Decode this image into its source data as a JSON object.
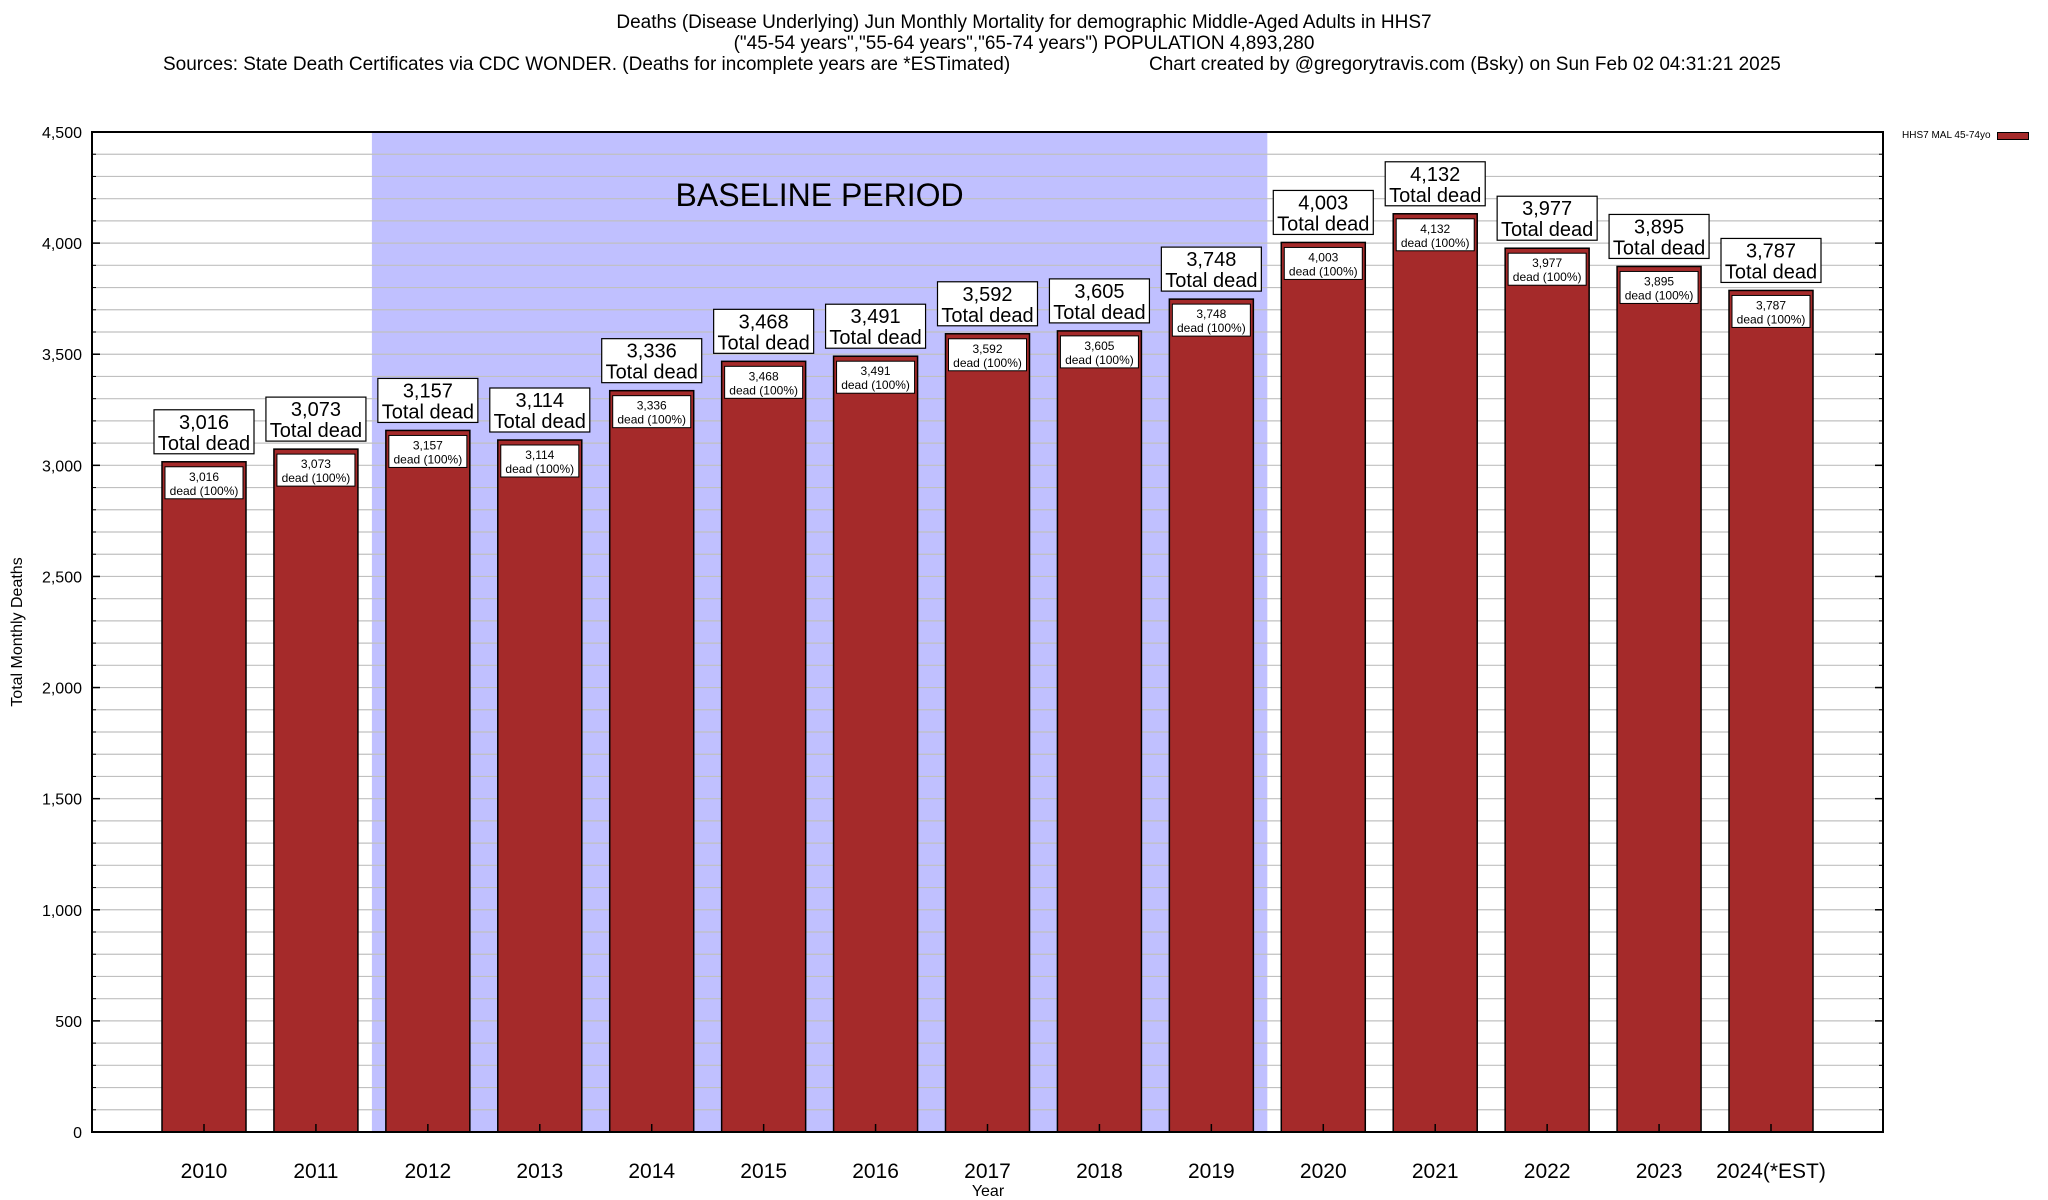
{
  "header": {
    "title_line1": "Deaths (Disease Underlying) Jun Monthly Mortality for demographic Middle-Aged Adults in HHS7",
    "title_line2": "(\"45-54 years\",\"55-64 years\",\"65-74 years\") POPULATION 4,893,280",
    "sources": "Sources: State Death Certificates via CDC WONDER. (Deaths for incomplete years are *ESTimated)",
    "credit": "Chart created by @gregorytravis.com (Bsky) on Sun Feb 02 04:31:21 2025"
  },
  "legend": {
    "label": "HHS7 MAL 45-74yo",
    "color": "#a52a2a"
  },
  "colors": {
    "bar": "#a52a2a",
    "baseline_shade": "#c0c0ff",
    "grid": "#c0c0c0"
  },
  "chart_data": {
    "type": "bar",
    "title": "Deaths (Disease Underlying) Jun Monthly Mortality for demographic Middle-Aged Adults in HHS7",
    "xlabel": "Year",
    "ylabel": "Total Monthly Deaths",
    "ylim": [
      0,
      4500
    ],
    "yticks": [
      0,
      500,
      1000,
      1500,
      2000,
      2500,
      3000,
      3500,
      4000,
      4500
    ],
    "ytick_labels": [
      "0",
      "500",
      "1,000",
      "1,500",
      "2,000",
      "2,500",
      "3,000",
      "3,500",
      "4,000",
      "4,500"
    ],
    "minor_grid_step": 100,
    "grid": true,
    "legend_position": "top-right",
    "categories": [
      "2010",
      "2011",
      "2012",
      "2013",
      "2014",
      "2015",
      "2016",
      "2017",
      "2018",
      "2019",
      "2020",
      "2021",
      "2022",
      "2023",
      "2024(*EST)"
    ],
    "series": [
      {
        "name": "HHS7 MAL 45-74yo",
        "values": [
          3016,
          3073,
          3157,
          3114,
          3336,
          3468,
          3491,
          3592,
          3605,
          3748,
          4003,
          4132,
          3977,
          3895,
          3787
        ]
      }
    ],
    "value_labels": [
      "3,016",
      "3,073",
      "3,157",
      "3,114",
      "3,336",
      "3,468",
      "3,491",
      "3,592",
      "3,605",
      "3,748",
      "4,003",
      "4,132",
      "3,977",
      "3,895",
      "3,787"
    ],
    "top_label_suffix": "Total dead",
    "inner_label_suffix": "dead (100%)",
    "annotations": [
      {
        "text": "BASELINE PERIOD",
        "span_categories": [
          "2012",
          "2019"
        ]
      }
    ]
  }
}
